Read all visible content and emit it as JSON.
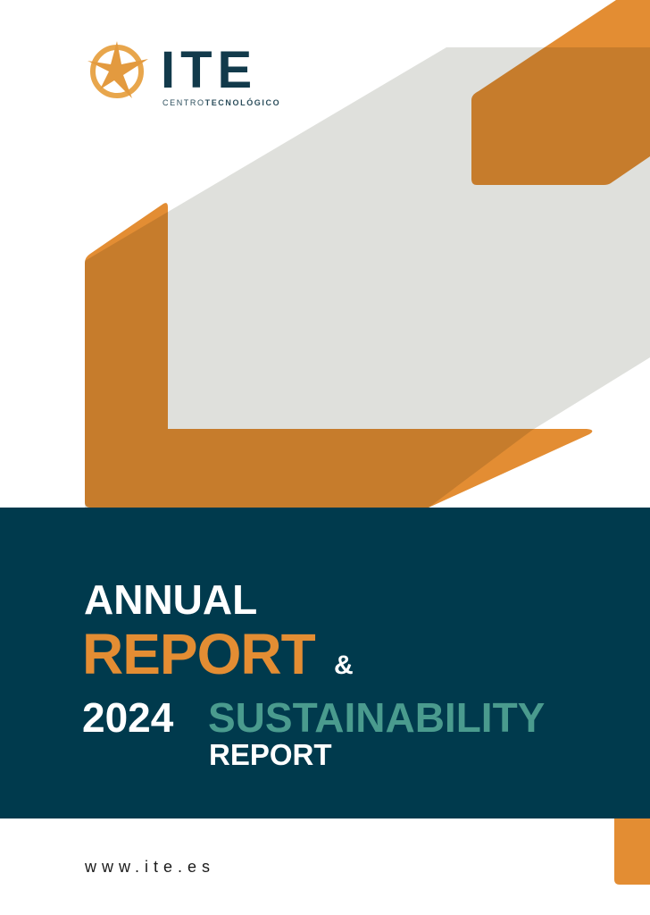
{
  "logo": {
    "name": "ITE",
    "sub_light": "CENTRO",
    "sub_bold": "TECNOLÓGICO"
  },
  "title": {
    "line1": "ANNUAL",
    "line2": "REPORT",
    "ampersand": "&",
    "year": "2024",
    "line3": "SUSTAINABILITY",
    "line4": "REPORT"
  },
  "footer": {
    "url": "www.ite.es"
  },
  "colors": {
    "orange": "#E38D33",
    "navy": "#003A4D",
    "teal": "#4A9B8E",
    "gray": "#DFE0DC"
  }
}
